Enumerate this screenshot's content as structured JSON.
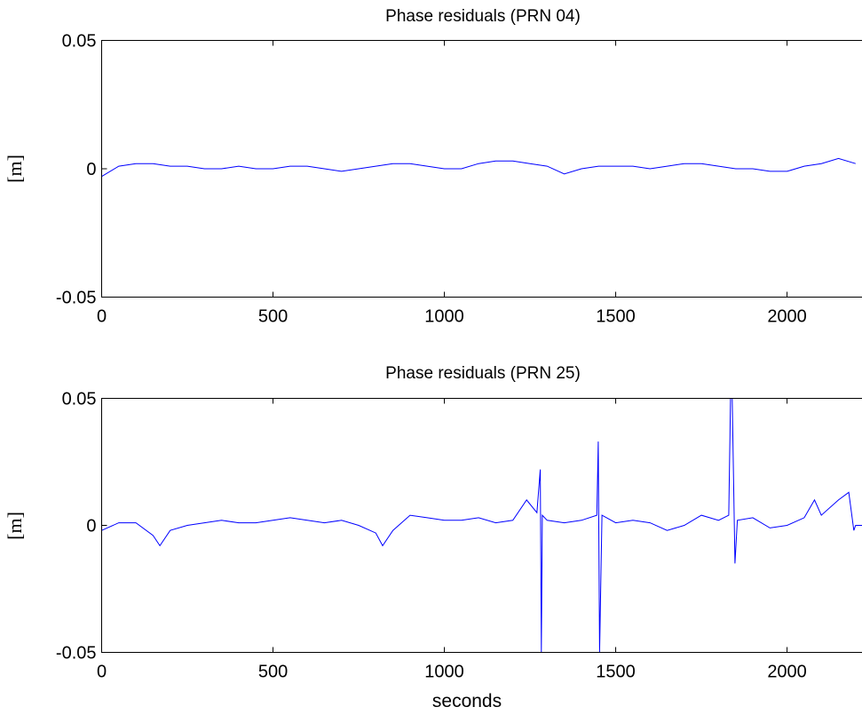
{
  "chart_data": [
    {
      "type": "line",
      "title": "Phase residuals (PRN 04)",
      "xlabel": "",
      "ylabel": "[m]",
      "xlim": [
        0,
        2220
      ],
      "ylim": [
        -0.05,
        0.05
      ],
      "x_ticks": [
        "0",
        "500",
        "1000",
        "1500",
        "2000"
      ],
      "x_tick_values": [
        0,
        500,
        1000,
        1500,
        2000
      ],
      "y_ticks": [
        "0.05",
        "0",
        "-0.05"
      ],
      "y_tick_values": [
        0.05,
        0,
        -0.05
      ],
      "grid": false,
      "color": "#0000ff",
      "series": [
        {
          "x": [
            0,
            50,
            100,
            150,
            200,
            250,
            300,
            350,
            400,
            450,
            500,
            550,
            600,
            650,
            700,
            750,
            800,
            850,
            900,
            950,
            1000,
            1050,
            1100,
            1150,
            1200,
            1250,
            1300,
            1350,
            1400,
            1450,
            1500,
            1550,
            1600,
            1650,
            1700,
            1750,
            1800,
            1850,
            1900,
            1950,
            2000,
            2050,
            2100,
            2150,
            2200
          ],
          "values": [
            -0.003,
            0.001,
            0.002,
            0.002,
            0.001,
            0.001,
            0.0,
            0.0,
            0.001,
            0.0,
            0.0,
            0.001,
            0.001,
            0.0,
            -0.001,
            0.0,
            0.001,
            0.002,
            0.002,
            0.001,
            0.0,
            0.0,
            0.002,
            0.003,
            0.003,
            0.002,
            0.001,
            -0.002,
            0.0,
            0.001,
            0.001,
            0.001,
            0.0,
            0.001,
            0.002,
            0.002,
            0.001,
            0.0,
            0.0,
            -0.001,
            -0.001,
            0.001,
            0.002,
            0.004,
            0.002
          ]
        }
      ]
    },
    {
      "type": "line",
      "title": "Phase residuals (PRN 25)",
      "xlabel": "seconds",
      "ylabel": "[m]",
      "xlim": [
        0,
        2220
      ],
      "ylim": [
        -0.05,
        0.05
      ],
      "x_ticks": [
        "0",
        "500",
        "1000",
        "1500",
        "2000"
      ],
      "x_tick_values": [
        0,
        500,
        1000,
        1500,
        2000
      ],
      "y_ticks": [
        "0.05",
        "0",
        "-0.05"
      ],
      "y_tick_values": [
        0.05,
        0,
        -0.05
      ],
      "grid": false,
      "color": "#0000ff",
      "series": [
        {
          "x": [
            0,
            50,
            100,
            150,
            170,
            200,
            250,
            300,
            350,
            400,
            450,
            500,
            550,
            600,
            650,
            700,
            750,
            800,
            820,
            850,
            900,
            950,
            1000,
            1050,
            1100,
            1150,
            1200,
            1240,
            1270,
            1280,
            1283,
            1286,
            1300,
            1350,
            1400,
            1445,
            1449,
            1453,
            1460,
            1500,
            1550,
            1600,
            1650,
            1700,
            1750,
            1800,
            1830,
            1835,
            1840,
            1848,
            1855,
            1900,
            1950,
            2000,
            2050,
            2080,
            2100,
            2150,
            2180,
            2195,
            2200,
            2220
          ],
          "values": [
            -0.002,
            0.001,
            0.001,
            -0.004,
            -0.008,
            -0.002,
            0.0,
            0.001,
            0.002,
            0.001,
            0.001,
            0.002,
            0.003,
            0.002,
            0.001,
            0.002,
            0.0,
            -0.003,
            -0.008,
            -0.002,
            0.004,
            0.003,
            0.002,
            0.002,
            0.003,
            0.001,
            0.002,
            0.01,
            0.005,
            0.022,
            -0.05,
            0.004,
            0.002,
            0.001,
            0.002,
            0.004,
            0.033,
            -0.05,
            0.004,
            0.001,
            0.002,
            0.001,
            -0.002,
            0.0,
            0.004,
            0.002,
            0.004,
            0.05,
            0.05,
            -0.015,
            0.002,
            0.003,
            -0.001,
            0.0,
            0.003,
            0.01,
            0.004,
            0.01,
            0.013,
            -0.002,
            0.0,
            0.0
          ]
        }
      ]
    }
  ]
}
